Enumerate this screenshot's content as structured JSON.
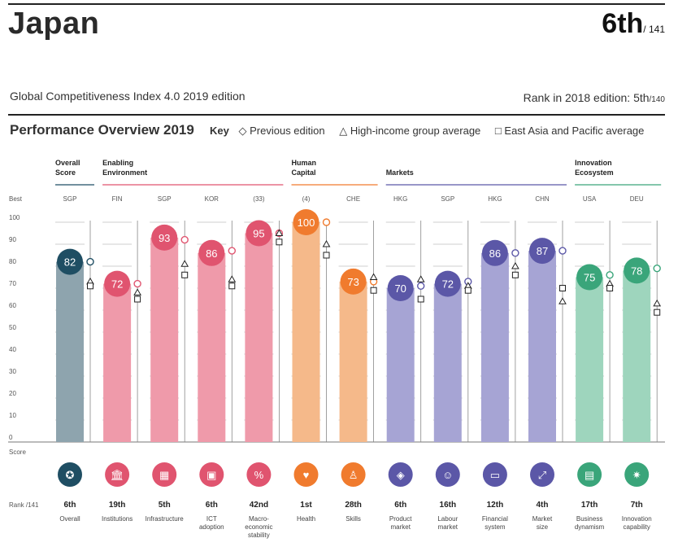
{
  "header": {
    "country": "Japan",
    "rank": "6th",
    "rank_of": "/ 141",
    "gci_title": "Global Competitiveness Index 4.0 2019 edition",
    "rank_2018_label": "Rank in 2018 edition: 5th",
    "rank_2018_of": "/140",
    "perf_title": "Performance Overview 2019",
    "key_label": "Key",
    "key_prev": "Previous edition",
    "key_high": "High-income group average",
    "key_eap": "East Asia and Pacific average"
  },
  "axis": {
    "best_label": "Best",
    "score_label": "Score",
    "rank_label": "Rank /141",
    "ticks": [
      "0",
      "10",
      "20",
      "30",
      "40",
      "50",
      "60",
      "70",
      "80",
      "90",
      "100"
    ]
  },
  "groups": [
    {
      "name": "Overall Score",
      "lines": [
        "Overall",
        "Score"
      ],
      "color": "#1f4e63"
    },
    {
      "name": "Enabling Environment",
      "lines": [
        "Enabling",
        "Environment"
      ],
      "color": "#e0546f"
    },
    {
      "name": "Human Capital",
      "lines": [
        "Human",
        "Capital"
      ],
      "color": "#f07b2e"
    },
    {
      "name": "Markets",
      "lines": [
        "Markets"
      ],
      "color": "#5b57a7"
    },
    {
      "name": "Innovation Ecosystem",
      "lines": [
        "Innovation",
        "Ecosystem"
      ],
      "color": "#3aa57a"
    }
  ],
  "colors": {
    "overall_bar": "#8ea4ae",
    "overall_circle": "#1f4e63",
    "enabling_bar": "#ef9aaa",
    "enabling_circle": "#e0546f",
    "human_bar": "#f5b98a",
    "human_circle": "#f07b2e",
    "markets_bar": "#a6a4d4",
    "markets_circle": "#5b57a7",
    "innovation_bar": "#9ed5bd",
    "innovation_circle": "#3aa57a"
  },
  "chart_data": {
    "type": "bar",
    "ylim": [
      0,
      100
    ],
    "categories": [
      "Overall",
      "Institutions",
      "Infrastructure",
      "ICT adoption",
      "Macro-economic stability",
      "Health",
      "Skills",
      "Product market",
      "Labour market",
      "Financial system",
      "Market size",
      "Business dynamism",
      "Innovation capability"
    ],
    "pillars": [
      {
        "label_lines": [
          "Overall"
        ],
        "group": 0,
        "best": "SGP",
        "value": 82,
        "rank": "6th",
        "icon": "medal-icon",
        "prev": 82,
        "high": 73,
        "eap": 71
      },
      {
        "label_lines": [
          "Institutions"
        ],
        "group": 1,
        "best": "FIN",
        "value": 72,
        "rank": "19th",
        "icon": "institution-icon",
        "prev": 72,
        "high": 68,
        "eap": 65
      },
      {
        "label_lines": [
          "Infrastructure"
        ],
        "group": 1,
        "best": "SGP",
        "value": 93,
        "rank": "5th",
        "icon": "train-icon",
        "prev": 92,
        "high": 81,
        "eap": 76
      },
      {
        "label_lines": [
          "ICT",
          "adoption"
        ],
        "group": 1,
        "best": "KOR",
        "value": 86,
        "rank": "6th",
        "icon": "chip-icon",
        "prev": 87,
        "high": 74,
        "eap": 71
      },
      {
        "label_lines": [
          "Macro-",
          "economic",
          "stability"
        ],
        "group": 1,
        "best": "(33)",
        "value": 95,
        "rank": "42nd",
        "icon": "percent-icon",
        "prev": 95,
        "high": 95,
        "eap": 91
      },
      {
        "label_lines": [
          "Health"
        ],
        "group": 2,
        "best": "(4)",
        "value": 100,
        "rank": "1st",
        "icon": "heartbeat-icon",
        "prev": 100,
        "high": 90,
        "eap": 85
      },
      {
        "label_lines": [
          "Skills"
        ],
        "group": 2,
        "best": "CHE",
        "value": 73,
        "rank": "28th",
        "icon": "graduate-icon",
        "prev": 73,
        "high": 75,
        "eap": 69
      },
      {
        "label_lines": [
          "Product",
          "market"
        ],
        "group": 3,
        "best": "HKG",
        "value": 70,
        "rank": "6th",
        "icon": "tag-icon",
        "prev": 71,
        "high": 74,
        "eap": 65
      },
      {
        "label_lines": [
          "Labour",
          "market"
        ],
        "group": 3,
        "best": "SGP",
        "value": 72,
        "rank": "16th",
        "icon": "people-icon",
        "prev": 73,
        "high": 71,
        "eap": 69
      },
      {
        "label_lines": [
          "Financial",
          "system"
        ],
        "group": 3,
        "best": "HKG",
        "value": 86,
        "rank": "12th",
        "icon": "credit-card-icon",
        "prev": 86,
        "high": 80,
        "eap": 76
      },
      {
        "label_lines": [
          "Market",
          "size"
        ],
        "group": 3,
        "best": "CHN",
        "value": 87,
        "rank": "4th",
        "icon": "expand-icon",
        "prev": 87,
        "high": 64,
        "eap": 70
      },
      {
        "label_lines": [
          "Business",
          "dynamism"
        ],
        "group": 4,
        "best": "USA",
        "value": 75,
        "rank": "17th",
        "icon": "business-icon",
        "prev": 76,
        "high": 72,
        "eap": 70
      },
      {
        "label_lines": [
          "Innovation",
          "capability"
        ],
        "group": 4,
        "best": "DEU",
        "value": 78,
        "rank": "7th",
        "icon": "lightbulb-icon",
        "prev": 79,
        "high": 63,
        "eap": 59
      }
    ]
  }
}
